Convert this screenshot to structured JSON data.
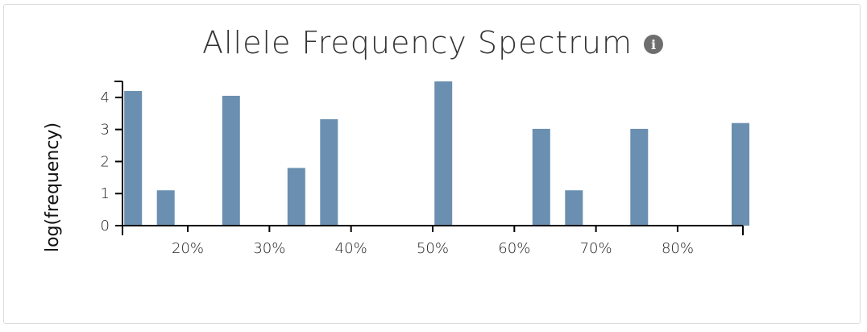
{
  "chart_data": {
    "type": "bar",
    "title": "Allele Frequency Spectrum",
    "xlabel": "",
    "ylabel": "log(frequency)",
    "ylim": [
      0,
      4.5
    ],
    "xlim": [
      0.12,
      0.88
    ],
    "x_ticks": [
      0.2,
      0.3,
      0.4,
      0.5,
      0.6,
      0.7,
      0.8
    ],
    "x_tick_labels": [
      "20%",
      "30%",
      "40%",
      "50%",
      "60%",
      "70%",
      "80%"
    ],
    "y_ticks": [
      0,
      1,
      2,
      3,
      4
    ],
    "y_tick_labels": [
      "0",
      "1",
      "2",
      "3",
      "4"
    ],
    "bar_color": "#6a8fb0",
    "bars": [
      {
        "x": 0.133,
        "value": 4.2
      },
      {
        "x": 0.173,
        "value": 1.1
      },
      {
        "x": 0.253,
        "value": 4.05
      },
      {
        "x": 0.333,
        "value": 1.8
      },
      {
        "x": 0.373,
        "value": 3.32
      },
      {
        "x": 0.513,
        "value": 4.5
      },
      {
        "x": 0.633,
        "value": 3.02
      },
      {
        "x": 0.673,
        "value": 1.1
      },
      {
        "x": 0.753,
        "value": 3.02
      },
      {
        "x": 0.877,
        "value": 3.2
      }
    ],
    "grid": false
  },
  "info_icon": "info-circle-icon"
}
